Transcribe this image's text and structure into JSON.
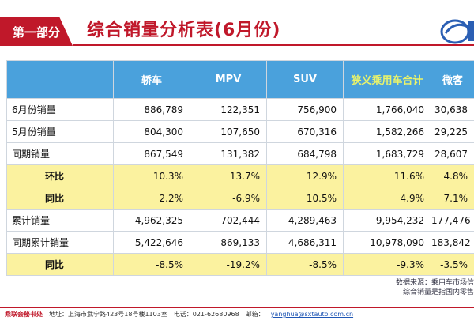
{
  "header": {
    "section_label": "第一部分",
    "title": "综合销量分析表(6月份)"
  },
  "table": {
    "columns": [
      "",
      "轿车",
      "MPV",
      "SUV",
      "狭义乘用车合计",
      "微客"
    ],
    "rows": [
      {
        "label": "6月份销量",
        "values": [
          "886,789",
          "122,351",
          "756,900",
          "1,766,040",
          "30,638"
        ],
        "highlight": false
      },
      {
        "label": "5月份销量",
        "values": [
          "804,300",
          "107,650",
          "670,316",
          "1,582,266",
          "29,225"
        ],
        "highlight": false
      },
      {
        "label": "同期销量",
        "values": [
          "867,549",
          "131,382",
          "684,798",
          "1,683,729",
          "28,607"
        ],
        "highlight": false
      },
      {
        "label": "环比",
        "values": [
          "10.3%",
          "13.7%",
          "12.9%",
          "11.6%",
          "4.8%"
        ],
        "highlight": true
      },
      {
        "label": "同比",
        "values": [
          "2.2%",
          "-6.9%",
          "10.5%",
          "4.9%",
          "7.1%"
        ],
        "highlight": true
      },
      {
        "label": "累计销量",
        "values": [
          "4,962,325",
          "702,444",
          "4,289,463",
          "9,954,232",
          "177,476"
        ],
        "highlight": false
      },
      {
        "label": "同期累计销量",
        "values": [
          "5,422,646",
          "869,133",
          "4,686,311",
          "10,978,090",
          "183,842"
        ],
        "highlight": false
      },
      {
        "label": "同比",
        "values": [
          "-8.5%",
          "-19.2%",
          "-8.5%",
          "-9.3%",
          "-3.5%"
        ],
        "highlight": true
      }
    ]
  },
  "source_note": [
    "数据来源：乘用车市场信",
    "综合销量是指国内零售"
  ],
  "footer": {
    "org": "乘联会秘书处",
    "address": "地址：上海市武宁路423号18号楼1103室",
    "phone": "电话：021-62680968",
    "email_label": "邮箱：",
    "email": "yanghua@sxtauto.com.cn"
  },
  "colors": {
    "brand_red": "#c0182a",
    "header_blue": "#4aa1dc",
    "highlight_yellow": "#fbf29f"
  }
}
